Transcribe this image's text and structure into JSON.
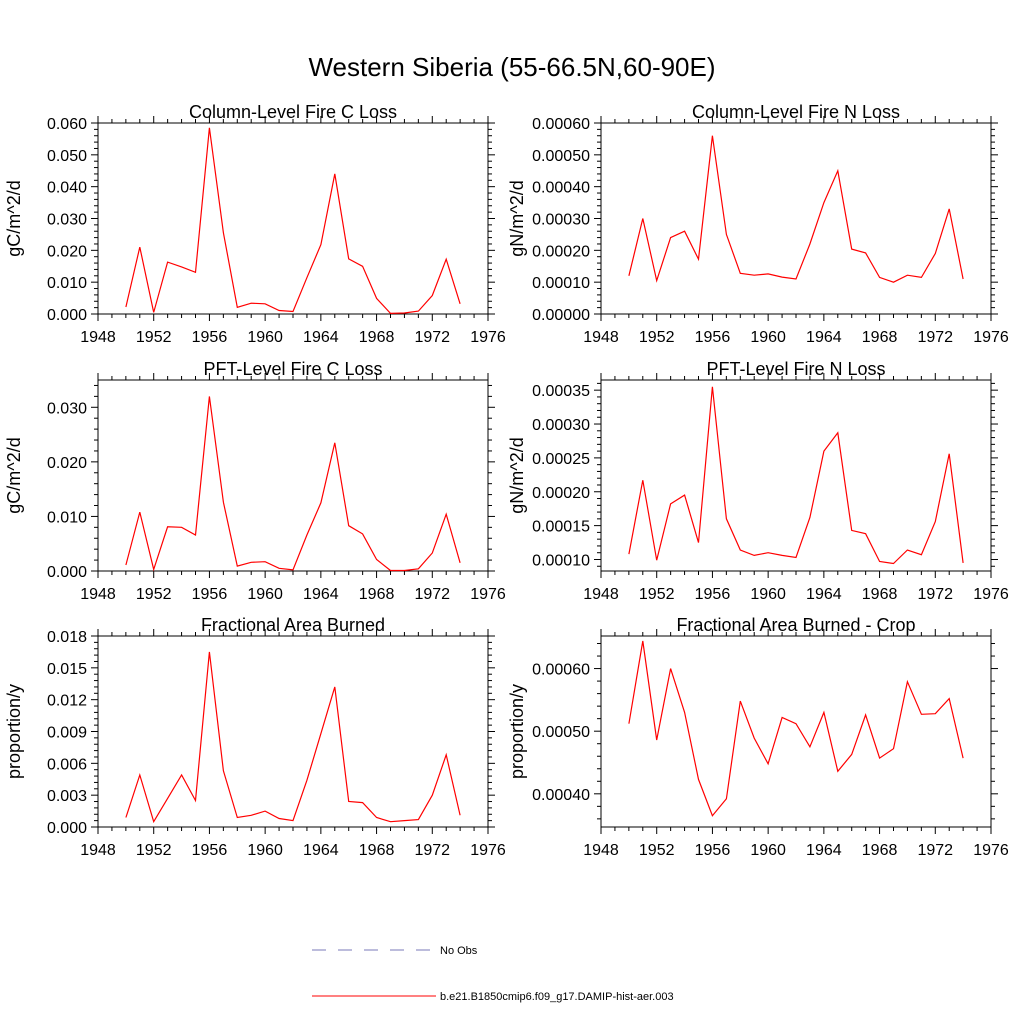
{
  "figure_title": "Western Siberia (55-66.5N,60-90E)",
  "legend": [
    {
      "label": "No Obs",
      "color": "#7a7ab8",
      "style": "dashed"
    },
    {
      "label": "b.e21.B1850cmip6.f09_g17.DAMIP-hist-aer.003",
      "color": "#ff0000",
      "style": "solid"
    }
  ],
  "series_color": "#ff0000",
  "chart_data": [
    {
      "type": "line",
      "title": "Column-Level Fire C Loss",
      "ylabel": "gC/m^2/d",
      "xlim": [
        1948,
        1976
      ],
      "ylim": [
        0,
        0.06
      ],
      "xticks": [
        1948,
        1952,
        1956,
        1960,
        1964,
        1968,
        1972,
        1976
      ],
      "yticks": [
        0,
        0.01,
        0.02,
        0.03,
        0.04,
        0.05,
        0.06
      ],
      "ytick_labels": [
        "0.000",
        "0.010",
        "0.020",
        "0.030",
        "0.040",
        "0.050",
        "0.060"
      ],
      "x": [
        1950,
        1951,
        1952,
        1953,
        1954,
        1955,
        1956,
        1957,
        1958,
        1959,
        1960,
        1961,
        1962,
        1963,
        1964,
        1965,
        1966,
        1967,
        1968,
        1969,
        1970,
        1971,
        1972,
        1973,
        1974
      ],
      "y": [
        0.0022,
        0.021,
        0.0005,
        0.0163,
        0.0148,
        0.0131,
        0.0585,
        0.0255,
        0.0021,
        0.0034,
        0.0032,
        0.0011,
        0.0008,
        0.0114,
        0.0218,
        0.044,
        0.0173,
        0.015,
        0.0049,
        0.0002,
        0.0003,
        0.0009,
        0.0058,
        0.0172,
        0.0032
      ]
    },
    {
      "type": "line",
      "title": "Column-Level Fire N Loss",
      "ylabel": "gN/m^2/d",
      "xlim": [
        1948,
        1976
      ],
      "ylim": [
        0,
        0.0006
      ],
      "xticks": [
        1948,
        1952,
        1956,
        1960,
        1964,
        1968,
        1972,
        1976
      ],
      "yticks": [
        0,
        0.0001,
        0.0002,
        0.0003,
        0.0004,
        0.0005,
        0.0006
      ],
      "ytick_labels": [
        "0.00000",
        "0.00010",
        "0.00020",
        "0.00030",
        "0.00040",
        "0.00050",
        "0.00060"
      ],
      "x": [
        1950,
        1951,
        1952,
        1953,
        1954,
        1955,
        1956,
        1957,
        1958,
        1959,
        1960,
        1961,
        1962,
        1963,
        1964,
        1965,
        1966,
        1967,
        1968,
        1969,
        1970,
        1971,
        1972,
        1973,
        1974
      ],
      "y": [
        0.00012,
        0.0003,
        0.000105,
        0.00024,
        0.00026,
        0.000172,
        0.00056,
        0.00025,
        0.000128,
        0.000122,
        0.000126,
        0.000116,
        0.00011,
        0.00022,
        0.00035,
        0.00045,
        0.000204,
        0.000192,
        0.000115,
        0.0001,
        0.000122,
        0.000115,
        0.00019,
        0.00033,
        0.00011
      ]
    },
    {
      "type": "line",
      "title": "PFT-Level Fire C Loss",
      "ylabel": "gC/m^2/d",
      "xlim": [
        1948,
        1976
      ],
      "ylim": [
        0,
        0.035
      ],
      "xticks": [
        1948,
        1952,
        1956,
        1960,
        1964,
        1968,
        1972,
        1976
      ],
      "yticks": [
        0,
        0.01,
        0.02,
        0.03
      ],
      "ytick_labels": [
        "0.000",
        "0.010",
        "0.020",
        "0.030"
      ],
      "x": [
        1950,
        1951,
        1952,
        1953,
        1954,
        1955,
        1956,
        1957,
        1958,
        1959,
        1960,
        1961,
        1962,
        1963,
        1964,
        1965,
        1966,
        1967,
        1968,
        1969,
        1970,
        1971,
        1972,
        1973,
        1974
      ],
      "y": [
        0.0011,
        0.0108,
        0.0003,
        0.0081,
        0.008,
        0.0066,
        0.032,
        0.0126,
        0.0009,
        0.0016,
        0.0017,
        0.0005,
        0.0002,
        0.0066,
        0.0125,
        0.0235,
        0.0083,
        0.0068,
        0.0021,
        0.0001,
        0.0001,
        0.0004,
        0.0033,
        0.0104,
        0.0015
      ]
    },
    {
      "type": "line",
      "title": "PFT-Level Fire N Loss",
      "ylabel": "gN/m^2/d",
      "xlim": [
        1948,
        1976
      ],
      "ylim": [
        8.3e-05,
        0.000365
      ],
      "xticks": [
        1948,
        1952,
        1956,
        1960,
        1964,
        1968,
        1972,
        1976
      ],
      "yticks": [
        0.0001,
        0.00015,
        0.0002,
        0.00025,
        0.0003,
        0.00035
      ],
      "ytick_labels": [
        "0.00010",
        "0.00015",
        "0.00020",
        "0.00025",
        "0.00030",
        "0.00035"
      ],
      "x": [
        1950,
        1951,
        1952,
        1953,
        1954,
        1955,
        1956,
        1957,
        1958,
        1959,
        1960,
        1961,
        1962,
        1963,
        1964,
        1965,
        1966,
        1967,
        1968,
        1969,
        1970,
        1971,
        1972,
        1973,
        1974
      ],
      "y": [
        0.000108,
        0.000217,
        9.9e-05,
        0.000182,
        0.000195,
        0.000125,
        0.000355,
        0.00016,
        0.000114,
        0.000106,
        0.00011,
        0.000106,
        0.000103,
        0.000162,
        0.00026,
        0.000287,
        0.000143,
        0.000138,
        9.7e-05,
        9.4e-05,
        0.000114,
        0.000107,
        0.000156,
        0.000256,
        9.5e-05
      ]
    },
    {
      "type": "line",
      "title": "Fractional Area Burned",
      "ylabel": "proportion/y",
      "xlim": [
        1948,
        1976
      ],
      "ylim": [
        0,
        0.018
      ],
      "xticks": [
        1948,
        1952,
        1956,
        1960,
        1964,
        1968,
        1972,
        1976
      ],
      "yticks": [
        0,
        0.003,
        0.006,
        0.009,
        0.012,
        0.015,
        0.018
      ],
      "ytick_labels": [
        "0.000",
        "0.003",
        "0.006",
        "0.009",
        "0.012",
        "0.015",
        "0.018"
      ],
      "x": [
        1950,
        1951,
        1952,
        1953,
        1954,
        1955,
        1956,
        1957,
        1958,
        1959,
        1960,
        1961,
        1962,
        1963,
        1964,
        1965,
        1966,
        1967,
        1968,
        1969,
        1970,
        1971,
        1972,
        1973,
        1974
      ],
      "y": [
        0.0009,
        0.0049,
        0.0005,
        0.0027,
        0.0049,
        0.0025,
        0.0165,
        0.0053,
        0.0009,
        0.0011,
        0.0015,
        0.0008,
        0.0006,
        0.0044,
        0.0088,
        0.0132,
        0.0024,
        0.0023,
        0.0009,
        0.0005,
        0.0006,
        0.0007,
        0.003,
        0.0068,
        0.0011
      ]
    },
    {
      "type": "line",
      "title": "Fractional Area Burned - Crop",
      "ylabel": "proportion/y",
      "xlim": [
        1948,
        1976
      ],
      "ylim": [
        0.000347,
        0.000652
      ],
      "xticks": [
        1948,
        1952,
        1956,
        1960,
        1964,
        1968,
        1972,
        1976
      ],
      "yticks": [
        0.0004,
        0.0005,
        0.0006
      ],
      "ytick_labels": [
        "0.00040",
        "0.00050",
        "0.00060"
      ],
      "x": [
        1950,
        1951,
        1952,
        1953,
        1954,
        1955,
        1956,
        1957,
        1958,
        1959,
        1960,
        1961,
        1962,
        1963,
        1964,
        1965,
        1966,
        1967,
        1968,
        1969,
        1970,
        1971,
        1972,
        1973,
        1974
      ],
      "y": [
        0.000512,
        0.000644,
        0.000486,
        0.0006,
        0.00053,
        0.000423,
        0.000365,
        0.000392,
        0.000548,
        0.000489,
        0.000448,
        0.000522,
        0.000512,
        0.000475,
        0.00053,
        0.000436,
        0.000463,
        0.000526,
        0.000457,
        0.000472,
        0.000579,
        0.000527,
        0.000528,
        0.000552,
        0.000457
      ]
    }
  ]
}
